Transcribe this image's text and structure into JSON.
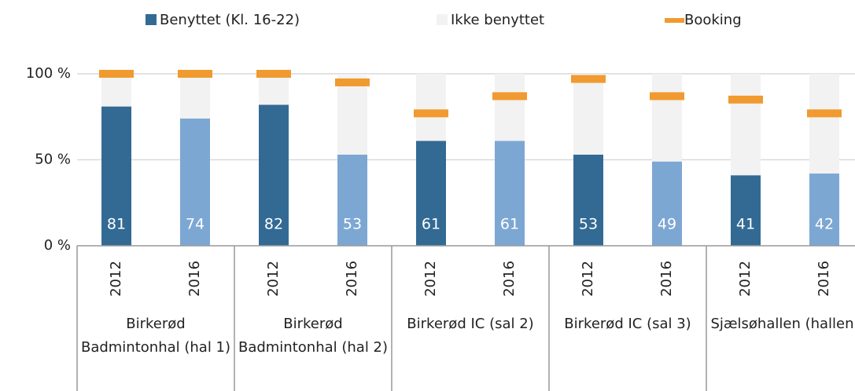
{
  "chart_data": {
    "type": "bar",
    "categories": [
      "2012",
      "2016",
      "2012",
      "2016",
      "2012",
      "2016",
      "2012",
      "2016",
      "2012",
      "2016"
    ],
    "groups": [
      "Birkerød Badmintonhal (hal 1)",
      "Birkerød Badmintonhal (hal 2)",
      "Birkerød IC (sal 2)",
      "Birkerød IC (sal 3)",
      "Sjælsøhallen (hallen)"
    ],
    "series": [
      {
        "name": "Benyttet (Kl. 16-22)",
        "color": "#336a94",
        "colors": [
          "#336a94",
          "#7da7d3",
          "#336a94",
          "#7da7d3",
          "#336a94",
          "#7da7d3",
          "#336a94",
          "#7da7d3",
          "#336a94",
          "#7da7d3"
        ],
        "values": [
          81,
          74,
          82,
          53,
          61,
          61,
          53,
          49,
          41,
          42
        ]
      },
      {
        "name": "Ikke benyttet",
        "color": "#f2f2f2",
        "values": [
          19,
          26,
          18,
          46,
          39,
          39,
          47,
          51,
          59,
          58
        ]
      },
      {
        "name": "Booking",
        "color": "#f09a30",
        "marker": "dash",
        "values": [
          100,
          100,
          100,
          95,
          77,
          87,
          97,
          87,
          85,
          77
        ]
      }
    ],
    "ylim": [
      0,
      100
    ],
    "yticks": [
      {
        "value": 0,
        "label": "0 %"
      },
      {
        "value": 50,
        "label": "50 %"
      },
      {
        "value": 100,
        "label": "100 %"
      }
    ],
    "grid": true,
    "legend": "top"
  }
}
